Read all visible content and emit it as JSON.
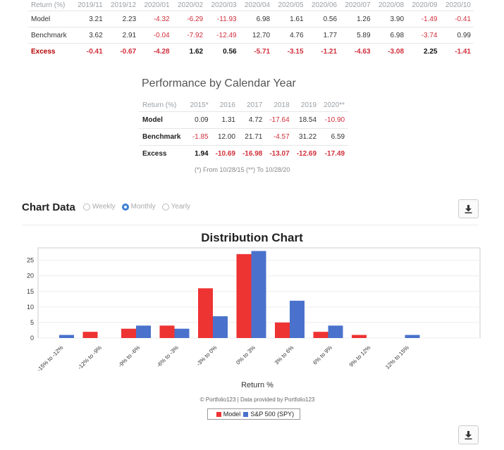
{
  "monthly_table": {
    "header_label": "Return (%)",
    "columns": [
      "2019/11",
      "2019/12",
      "2020/01",
      "2020/02",
      "2020/03",
      "2020/04",
      "2020/05",
      "2020/06",
      "2020/07",
      "2020/08",
      "2020/09",
      "2020/10"
    ],
    "rows": [
      {
        "label": "Model",
        "values": [
          "3.21",
          "2.23",
          "-4.32",
          "-6.29",
          "-11.93",
          "6.98",
          "1.61",
          "0.56",
          "1.26",
          "3.90",
          "-1.49",
          "-0.41"
        ]
      },
      {
        "label": "Benchmark",
        "values": [
          "3.62",
          "2.91",
          "-0.04",
          "-7.92",
          "-12.49",
          "12.70",
          "4.76",
          "1.77",
          "5.89",
          "6.98",
          "-3.74",
          "0.99"
        ]
      },
      {
        "label": "Excess",
        "values": [
          "-0.41",
          "-0.67",
          "-4.28",
          "1.62",
          "0.56",
          "-5.71",
          "-3.15",
          "-1.21",
          "-4.63",
          "-3.08",
          "2.25",
          "-1.41"
        ]
      }
    ]
  },
  "calendar": {
    "title": "Performance by Calendar Year",
    "header_label": "Return (%)",
    "columns": [
      "2015*",
      "2016",
      "2017",
      "2018",
      "2019",
      "2020**"
    ],
    "rows": [
      {
        "label": "Model",
        "values": [
          "0.09",
          "1.31",
          "4.72",
          "-17.64",
          "18.54",
          "-10.90"
        ]
      },
      {
        "label": "Benchmark",
        "values": [
          "-1.85",
          "12.00",
          "21.71",
          "-4.57",
          "31.22",
          "6.59"
        ]
      },
      {
        "label": "Excess",
        "values": [
          "1.94",
          "-10.69",
          "-16.98",
          "-13.07",
          "-12.69",
          "-17.49"
        ]
      }
    ],
    "note": "(*) From 10/28/15  (**) To 10/28/20"
  },
  "chart_header": {
    "title": "Chart Data",
    "options": [
      {
        "label": "Weekly",
        "selected": false
      },
      {
        "label": "Monthly",
        "selected": true
      },
      {
        "label": "Yearly",
        "selected": false
      }
    ],
    "download_icon": "download-icon"
  },
  "chart_data": {
    "type": "bar",
    "title": "Distribution Chart",
    "xlabel": "Return %",
    "ylabel": "",
    "categories": [
      "-15% to -12%",
      "-12% to -9%",
      "-9% to -6%",
      "-6% to -3%",
      "-3% to 0%",
      "0% to 3%",
      "3% to 6%",
      "6% to 9%",
      "9% to 12%",
      "12% to 15%"
    ],
    "series": [
      {
        "name": "Model",
        "color": "#ee3333",
        "values": [
          0,
          2,
          3,
          4,
          16,
          27,
          5,
          2,
          1,
          0
        ]
      },
      {
        "name": "S&P 500 (SPY)",
        "color": "#4a72cc",
        "values": [
          1,
          0,
          4,
          3,
          7,
          28,
          12,
          4,
          0,
          1
        ]
      }
    ],
    "ylim": [
      0,
      29
    ],
    "yticks": [
      "0",
      "5",
      "10",
      "15",
      "20",
      "25"
    ],
    "grid": true,
    "legend_position": "bottom-center",
    "credit": "© Portfolio123 | Data provided by Portfolio123"
  }
}
